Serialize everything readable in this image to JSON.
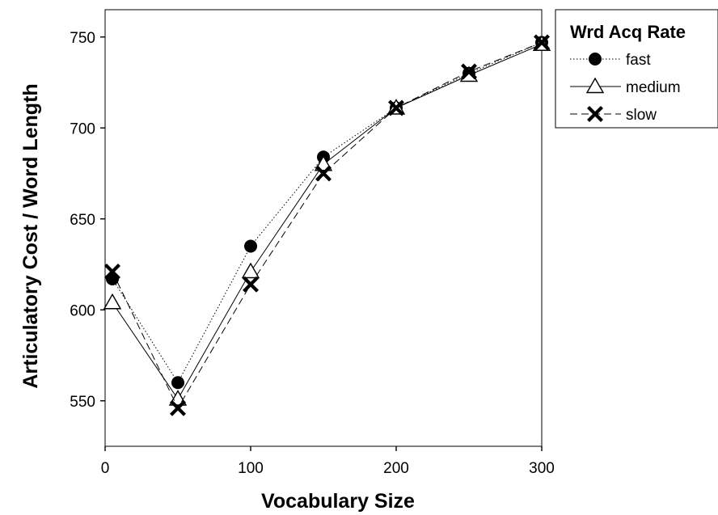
{
  "chart_data": {
    "type": "line",
    "title": "",
    "xlabel": "Vocabulary Size",
    "ylabel": "Articulatory Cost / Word Length",
    "xlim": [
      0,
      300
    ],
    "ylim": [
      525,
      765
    ],
    "x_ticks": [
      0,
      100,
      200,
      300
    ],
    "y_ticks": [
      550,
      600,
      650,
      700,
      750
    ],
    "x_tick_labels": [
      "0",
      "100",
      "200",
      "300"
    ],
    "y_tick_labels": [
      "550",
      "600",
      "650",
      "700",
      "750"
    ],
    "grid": false,
    "legend": {
      "title": "Wrd Acq Rate",
      "placement": "top-right, outside plot"
    },
    "x": [
      5,
      50,
      100,
      150,
      200,
      250,
      300
    ],
    "series": [
      {
        "name": "fast",
        "marker": "filled-circle",
        "line_style": "dotted",
        "values": [
          617,
          560,
          635,
          684,
          711,
          730,
          747
        ]
      },
      {
        "name": "medium",
        "marker": "open-triangle",
        "line_style": "solid",
        "values": [
          604,
          551,
          621,
          680,
          711,
          729,
          746
        ]
      },
      {
        "name": "slow",
        "marker": "x-cross",
        "line_style": "dashed",
        "values": [
          621,
          546,
          614,
          675,
          711,
          731,
          747
        ]
      }
    ]
  }
}
